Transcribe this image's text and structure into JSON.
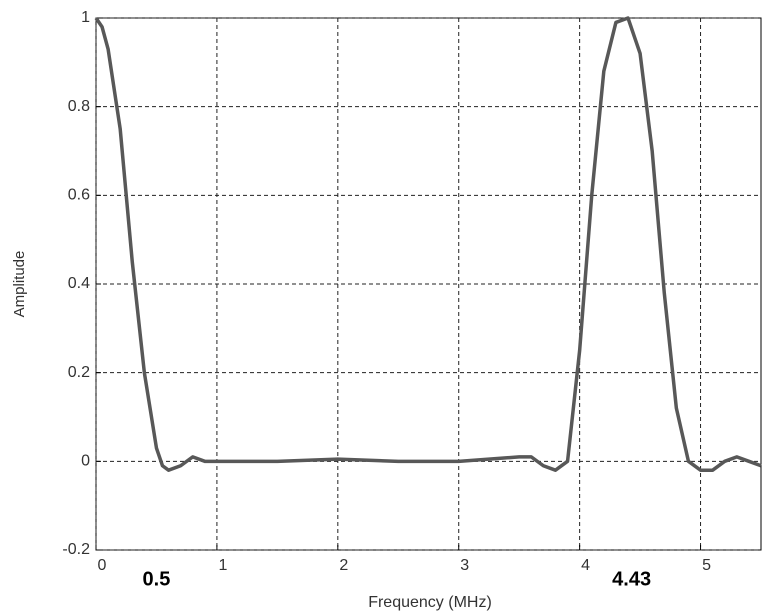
{
  "chart_data": {
    "type": "line",
    "x_label": "Frequency (MHz)",
    "y_label": "Amplitude",
    "x": [
      0,
      0.05,
      0.1,
      0.2,
      0.3,
      0.4,
      0.5,
      0.55,
      0.6,
      0.7,
      0.8,
      0.9,
      1.0,
      1.5,
      2.0,
      2.5,
      3.0,
      3.5,
      3.6,
      3.7,
      3.8,
      3.9,
      4.0,
      4.1,
      4.2,
      4.3,
      4.4,
      4.5,
      4.6,
      4.7,
      4.8,
      4.9,
      5.0,
      5.1,
      5.2,
      5.3,
      5.4,
      5.5
    ],
    "values": [
      1,
      0.98,
      0.93,
      0.75,
      0.45,
      0.2,
      0.03,
      -0.01,
      -0.02,
      -0.01,
      0.01,
      0.0,
      0.0,
      0.0,
      0.005,
      0.0,
      0.0,
      0.01,
      0.01,
      -0.01,
      -0.02,
      0.0,
      0.25,
      0.6,
      0.88,
      0.99,
      1.0,
      0.92,
      0.7,
      0.38,
      0.12,
      0.0,
      -0.02,
      -0.02,
      0.0,
      0.01,
      0.0,
      -0.01
    ],
    "color": "#585858",
    "xlim": [
      0,
      5.5
    ],
    "ylim": [
      -0.2,
      1
    ],
    "xticks": [
      0,
      1,
      2,
      3,
      4,
      5
    ],
    "yticks": [
      -0.2,
      0,
      0.2,
      0.4,
      0.6,
      0.8,
      1
    ],
    "grid": true,
    "annotations": [
      {
        "label": "0.5",
        "x": 0.5
      },
      {
        "label": "4.43",
        "x": 4.43
      }
    ]
  }
}
